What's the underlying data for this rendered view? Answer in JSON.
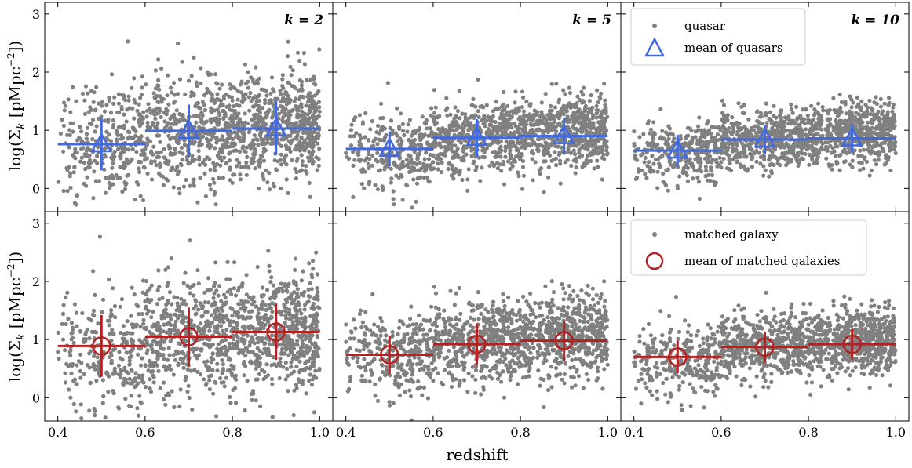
{
  "figure": {
    "xlabel": "redshift",
    "ylabel": "log(Σ",
    "ylabel_sub": "k",
    "ylabel_unit": " [pMpc",
    "ylabel_sup": "−2",
    "ylabel_end": "])"
  },
  "legend_top": {
    "scatter_label": "quasar",
    "mean_label": "mean of quasars"
  },
  "legend_bottom": {
    "scatter_label": "matched galaxy",
    "mean_label": "mean of matched galaxies"
  },
  "colors": {
    "scatter": "#808080",
    "quasar": "#4169E1",
    "galaxy": "#B22222"
  },
  "chart_data": [
    {
      "type": "scatter",
      "row": "quasar",
      "k": "k = 2",
      "xlim": [
        0.37,
        1.03
      ],
      "ylim": [
        -0.4,
        3.2
      ],
      "xticks": [
        "0.4",
        "0.6",
        "0.8",
        "1.0"
      ],
      "yticks": [
        "0",
        "1",
        "2",
        "3"
      ],
      "scatter": {
        "name": "quasar",
        "n": 1400,
        "center": 1.0,
        "spread": 0.45
      },
      "mean": {
        "name": "mean of quasars",
        "marker": "triangle",
        "bins": [
          {
            "x": 0.5,
            "xlo": 0.4,
            "xhi": 0.6,
            "y": 0.76,
            "yerr": 0.45
          },
          {
            "x": 0.7,
            "xlo": 0.6,
            "xhi": 0.8,
            "y": 0.99,
            "yerr": 0.45
          },
          {
            "x": 0.9,
            "xlo": 0.8,
            "xhi": 1.0,
            "y": 1.03,
            "yerr": 0.46
          }
        ]
      }
    },
    {
      "type": "scatter",
      "row": "quasar",
      "k": "k = 5",
      "xlim": [
        0.37,
        1.03
      ],
      "ylim": [
        -0.4,
        3.2
      ],
      "xticks": [
        "0.4",
        "0.6",
        "0.8",
        "1.0"
      ],
      "yticks": [
        "0",
        "1",
        "2",
        "3"
      ],
      "scatter": {
        "name": "quasar",
        "n": 1400,
        "center": 0.88,
        "spread": 0.3
      },
      "mean": {
        "name": "mean of quasars",
        "marker": "triangle",
        "bins": [
          {
            "x": 0.5,
            "xlo": 0.4,
            "xhi": 0.6,
            "y": 0.68,
            "yerr": 0.3
          },
          {
            "x": 0.7,
            "xlo": 0.6,
            "xhi": 0.8,
            "y": 0.87,
            "yerr": 0.32
          },
          {
            "x": 0.9,
            "xlo": 0.8,
            "xhi": 1.0,
            "y": 0.9,
            "yerr": 0.32
          }
        ]
      }
    },
    {
      "type": "scatter",
      "row": "quasar",
      "k": "k = 10",
      "xlim": [
        0.37,
        1.03
      ],
      "ylim": [
        -0.4,
        3.2
      ],
      "xticks": [
        "0.4",
        "0.6",
        "0.8",
        "1.0"
      ],
      "yticks": [
        "0",
        "1",
        "2",
        "3"
      ],
      "scatter": {
        "name": "quasar",
        "n": 1400,
        "center": 0.84,
        "spread": 0.25
      },
      "mean": {
        "name": "mean of quasars",
        "marker": "triangle",
        "bins": [
          {
            "x": 0.5,
            "xlo": 0.4,
            "xhi": 0.6,
            "y": 0.65,
            "yerr": 0.27
          },
          {
            "x": 0.7,
            "xlo": 0.6,
            "xhi": 0.8,
            "y": 0.84,
            "yerr": 0.25
          },
          {
            "x": 0.9,
            "xlo": 0.8,
            "xhi": 1.0,
            "y": 0.86,
            "yerr": 0.24
          }
        ]
      }
    },
    {
      "type": "scatter",
      "row": "galaxy",
      "k": "",
      "xlim": [
        0.37,
        1.03
      ],
      "ylim": [
        -0.4,
        3.2
      ],
      "xticks": [
        "0.4",
        "0.6",
        "0.8",
        "1.0"
      ],
      "yticks": [
        "0",
        "1",
        "2",
        "3"
      ],
      "scatter": {
        "name": "matched galaxy",
        "n": 1400,
        "center": 1.05,
        "spread": 0.5
      },
      "mean": {
        "name": "mean of matched galaxies",
        "marker": "circle",
        "bins": [
          {
            "x": 0.5,
            "xlo": 0.4,
            "xhi": 0.6,
            "y": 0.89,
            "yerr": 0.53
          },
          {
            "x": 0.7,
            "xlo": 0.6,
            "xhi": 0.8,
            "y": 1.05,
            "yerr": 0.5
          },
          {
            "x": 0.9,
            "xlo": 0.8,
            "xhi": 1.0,
            "y": 1.13,
            "yerr": 0.48
          }
        ]
      }
    },
    {
      "type": "scatter",
      "row": "galaxy",
      "k": "",
      "xlim": [
        0.37,
        1.03
      ],
      "ylim": [
        -0.4,
        3.2
      ],
      "xticks": [
        "0.4",
        "0.6",
        "0.8",
        "1.0"
      ],
      "yticks": [
        "0",
        "1",
        "2",
        "3"
      ],
      "scatter": {
        "name": "matched galaxy",
        "n": 1400,
        "center": 0.95,
        "spread": 0.35
      },
      "mean": {
        "name": "mean of matched galaxies",
        "marker": "circle",
        "bins": [
          {
            "x": 0.5,
            "xlo": 0.4,
            "xhi": 0.6,
            "y": 0.74,
            "yerr": 0.33
          },
          {
            "x": 0.7,
            "xlo": 0.6,
            "xhi": 0.8,
            "y": 0.92,
            "yerr": 0.35
          },
          {
            "x": 0.9,
            "xlo": 0.8,
            "xhi": 1.0,
            "y": 0.98,
            "yerr": 0.35
          }
        ]
      }
    },
    {
      "type": "scatter",
      "row": "galaxy",
      "k": "",
      "xlim": [
        0.37,
        1.03
      ],
      "ylim": [
        -0.4,
        3.2
      ],
      "xticks": [
        "0.4",
        "0.6",
        "0.8",
        "1.0"
      ],
      "yticks": [
        "0",
        "1",
        "2",
        "3"
      ],
      "scatter": {
        "name": "matched galaxy",
        "n": 1400,
        "center": 0.88,
        "spread": 0.28
      },
      "mean": {
        "name": "mean of matched galaxies",
        "marker": "circle",
        "bins": [
          {
            "x": 0.5,
            "xlo": 0.4,
            "xhi": 0.6,
            "y": 0.7,
            "yerr": 0.28
          },
          {
            "x": 0.7,
            "xlo": 0.6,
            "xhi": 0.8,
            "y": 0.87,
            "yerr": 0.27
          },
          {
            "x": 0.9,
            "xlo": 0.8,
            "xhi": 1.0,
            "y": 0.92,
            "yerr": 0.26
          }
        ]
      }
    }
  ]
}
